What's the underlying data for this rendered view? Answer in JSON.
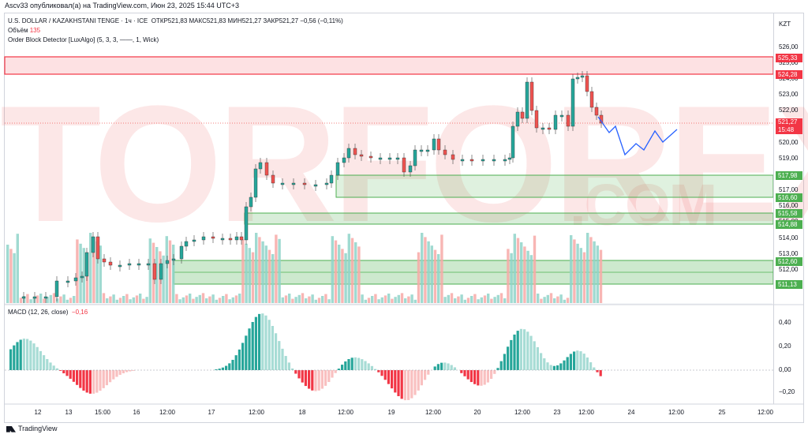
{
  "header": {
    "published": "Ascv33 опубликовал(а) на TradingView.com, Июн 23, 2025 15:44 UTC+3",
    "symbol": "U.S. DOLLAR / KAZAKHSTANI TENGE · 1ч · ICE",
    "ohlc": "ОТКР521,83  МАКС521,83  МИН521,27  ЗАКР521,27  −0,56 (−0,11%)",
    "volume_label": "Объём",
    "volume_value": "135",
    "indicator": "Order Block Detector [LuxAlgo] (5, 3, 3, ——, 1, Wick)",
    "macd_label": "MACD (12, 26, close)",
    "macd_value": "−0,16"
  },
  "currency": "KZT",
  "price_axis": [
    "526,00",
    "525,00",
    "524,00",
    "523,00",
    "522,00",
    "521,00",
    "520,00",
    "519,00",
    "518,00",
    "517,00",
    "516,00",
    "515,00",
    "514,00",
    "513,00",
    "512,00",
    "511,00"
  ],
  "badges": {
    "b1": "525,33",
    "b2": "524,28",
    "b3a": "521,27",
    "b3b": "15:48",
    "b4": "517,98",
    "b5": "516,60",
    "b6": "515,58",
    "b7": "514,88",
    "b8": "512,60",
    "b9": "511,13"
  },
  "macd_axis": [
    "0,40",
    "0,20",
    "0,00",
    "−0,20"
  ],
  "time_axis": [
    "12",
    "13",
    "15:00",
    "16",
    "12:00",
    "17",
    "12:00",
    "18",
    "12:00",
    "19",
    "12:00",
    "20",
    "12:00",
    "23",
    "12:00",
    "24",
    "12:00",
    "25",
    "12:00"
  ],
  "watermark": {
    "main": "TORFOREX",
    "sub": ".COM"
  },
  "footer": "TradingView",
  "colors": {
    "up": "#26a69a",
    "down": "#ef5350",
    "zone_green": "#4caf50",
    "zone_red": "#f23645",
    "projection": "#2962ff"
  }
}
